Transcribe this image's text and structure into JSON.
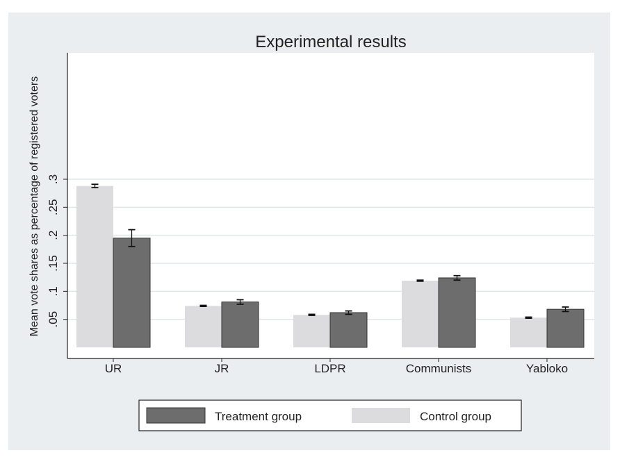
{
  "chart_data": {
    "type": "bar",
    "title": "Experimental results",
    "ylabel": "Mean vote shares as percentage of registered voters",
    "xlabel": "",
    "ylim": [
      0,
      0.3
    ],
    "yticks": [
      0.05,
      0.1,
      0.15,
      0.2,
      0.25,
      0.3
    ],
    "ytick_labels": [
      ".05",
      ".1",
      ".15",
      ".2",
      ".25",
      ".3"
    ],
    "grid": true,
    "legend_position": "bottom",
    "categories": [
      "UR",
      "JR",
      "LDPR",
      "Communists",
      "Yabloko"
    ],
    "series": [
      {
        "name": "Control group",
        "color": "#dcdcde",
        "values": [
          0.288,
          0.074,
          0.058,
          0.119,
          0.053
        ],
        "error": [
          0.003,
          0.001,
          0.001,
          0.001,
          0.001
        ]
      },
      {
        "name": "Treatment group",
        "color": "#6d6d6e",
        "values": [
          0.195,
          0.081,
          0.062,
          0.124,
          0.068
        ],
        "error": [
          0.015,
          0.004,
          0.003,
          0.004,
          0.004
        ]
      }
    ],
    "legend_order": [
      "Treatment group",
      "Control group"
    ]
  },
  "colors": {
    "panel_background": "#eaeef0",
    "plot_background": "#ffffff",
    "gridline": "#e2e6e8",
    "axis": "#222222"
  }
}
